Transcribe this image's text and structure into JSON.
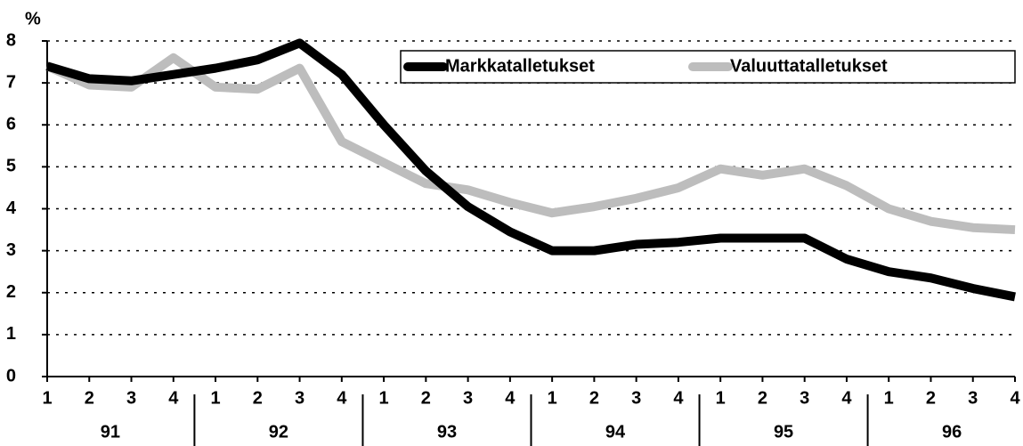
{
  "chart_data": {
    "type": "line",
    "y_label": "%",
    "categories": [
      "1",
      "2",
      "3",
      "4",
      "1",
      "2",
      "3",
      "4",
      "1",
      "2",
      "3",
      "4",
      "1",
      "2",
      "3",
      "4",
      "1",
      "2",
      "3",
      "4",
      "1",
      "2",
      "3",
      "4"
    ],
    "year_labels": [
      "91",
      "92",
      "93",
      "94",
      "95",
      "96"
    ],
    "series": [
      {
        "name": "Markkatalletukset",
        "color": "#000000",
        "values": [
          7.4,
          7.1,
          7.05,
          7.2,
          7.35,
          7.55,
          7.95,
          7.2,
          6.0,
          4.9,
          4.05,
          3.45,
          3.0,
          3.0,
          3.15,
          3.2,
          3.3,
          3.3,
          3.3,
          2.8,
          2.5,
          2.35,
          2.1,
          1.9
        ]
      },
      {
        "name": "Valuuttatalletukset",
        "color": "#bdbdbd",
        "values": [
          7.4,
          6.95,
          6.9,
          7.6,
          6.9,
          6.85,
          7.35,
          5.6,
          5.1,
          4.6,
          4.45,
          4.15,
          3.9,
          4.05,
          4.25,
          4.5,
          4.95,
          4.8,
          4.95,
          4.55,
          4.0,
          3.7,
          3.55,
          3.5
        ]
      }
    ],
    "ylim": [
      0,
      8
    ],
    "yticks": [
      0,
      1,
      2,
      3,
      4,
      5,
      6,
      7,
      8
    ],
    "grid": true
  }
}
